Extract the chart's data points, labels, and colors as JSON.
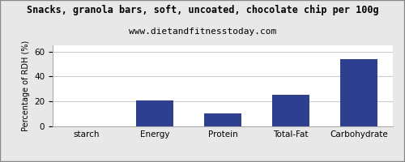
{
  "title": "Snacks, granola bars, soft, uncoated, chocolate chip per 100g",
  "subtitle": "www.dietandfitnesstoday.com",
  "categories": [
    "starch",
    "Energy",
    "Protein",
    "Total-Fat",
    "Carbohydrate"
  ],
  "values": [
    0,
    21,
    10.5,
    25.5,
    54
  ],
  "bar_color": "#2e3f8f",
  "ylabel": "Percentage of RDH (%)",
  "ylim": [
    0,
    65
  ],
  "yticks": [
    0,
    20,
    40,
    60
  ],
  "background_color": "#e8e8e8",
  "plot_bg_color": "#ffffff",
  "title_fontsize": 8.5,
  "subtitle_fontsize": 8.0,
  "ylabel_fontsize": 7.0,
  "tick_fontsize": 7.5,
  "grid_color": "#cccccc",
  "bar_width": 0.55
}
